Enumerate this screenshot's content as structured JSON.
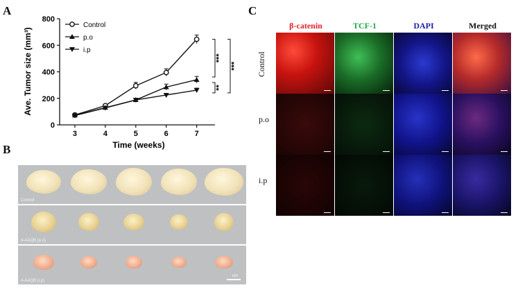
{
  "figure": {
    "panel_a": "A",
    "panel_b": "B",
    "panel_c": "C"
  },
  "chart_data": {
    "type": "line",
    "xlabel": "Time (weeks)",
    "ylabel": "Ave. Tumor size (mm³)",
    "x": [
      3,
      4,
      5,
      6,
      7
    ],
    "xlim": [
      2.5,
      7.6
    ],
    "ylim": [
      0,
      800
    ],
    "yticks": [
      0,
      200,
      400,
      600,
      800
    ],
    "series": [
      {
        "name": "Control",
        "marker": "circle",
        "values": [
          75,
          145,
          295,
          395,
          645
        ],
        "errors": [
          8,
          10,
          25,
          28,
          32
        ]
      },
      {
        "name": "p.o",
        "marker": "triangle-up",
        "values": [
          72,
          130,
          188,
          285,
          340
        ],
        "errors": [
          8,
          10,
          12,
          22,
          25
        ]
      },
      {
        "name": "i.p",
        "marker": "triangle-down",
        "values": [
          70,
          128,
          188,
          225,
          262
        ],
        "errors": [
          8,
          10,
          10,
          12,
          15
        ]
      }
    ],
    "significance": [
      "***",
      "***",
      "**"
    ]
  },
  "photos": {
    "rows": [
      {
        "label": "Control",
        "style": "pale",
        "count": 5
      },
      {
        "label": "4-AAQB (p.o)",
        "style": "yellow",
        "count": 5
      },
      {
        "label": "4-AAQB (i.p)",
        "style": "pink",
        "count": 5
      }
    ],
    "scale_label": "cm"
  },
  "microscopy": {
    "columns": [
      {
        "title": "β-catenin",
        "color": "#e3202a"
      },
      {
        "title": "TCF-1",
        "color": "#1fa84a"
      },
      {
        "title": "DAPI",
        "color": "#1b1ba8"
      },
      {
        "title": "Merged",
        "color": "#111111"
      }
    ],
    "rows": [
      "Control",
      "p.o",
      "i.p"
    ]
  }
}
